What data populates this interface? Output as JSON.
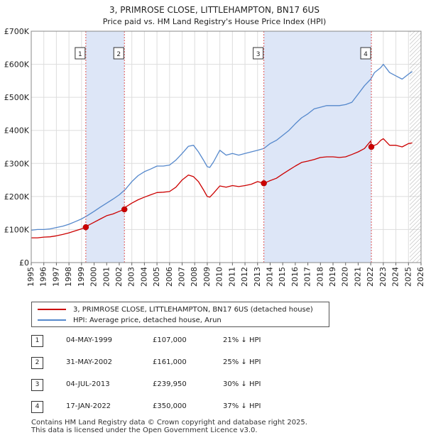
{
  "title_line1": "3, PRIMROSE CLOSE, LITTLEHAMPTON, BN17 6US",
  "title_line2": "Price paid vs. HM Land Registry's House Price Index (HPI)",
  "colors": {
    "property": "#cc0000",
    "hpi": "#5588cc",
    "shade": "#dde6f7",
    "marker_line": "#e05555",
    "grid": "#dddddd",
    "hatch": "#999999"
  },
  "legend": {
    "property_label": "3, PRIMROSE CLOSE, LITTLEHAMPTON, BN17 6US (detached house)",
    "hpi_label": "HPI: Average price, detached house, Arun"
  },
  "sales": [
    {
      "num": "1",
      "date": "04-MAY-1999",
      "price": "£107,000",
      "hpi": "21% ↓ HPI"
    },
    {
      "num": "2",
      "date": "31-MAY-2002",
      "price": "£161,000",
      "hpi": "25% ↓ HPI"
    },
    {
      "num": "3",
      "date": "04-JUL-2013",
      "price": "£239,950",
      "hpi": "30% ↓ HPI"
    },
    {
      "num": "4",
      "date": "17-JAN-2022",
      "price": "£350,000",
      "hpi": "37% ↓ HPI"
    }
  ],
  "footer_line1": "Contains HM Land Registry data © Crown copyright and database right 2025.",
  "footer_line2": "This data is licensed under the Open Government Licence v3.0.",
  "chart_data": {
    "type": "line",
    "title": "3, PRIMROSE CLOSE, LITTLEHAMPTON, BN17 6US",
    "subtitle": "Price paid vs. HM Land Registry's House Price Index (HPI)",
    "xlim": [
      1995,
      2026
    ],
    "ylim": [
      0,
      700000
    ],
    "y_ticks": [
      0,
      100000,
      200000,
      300000,
      400000,
      500000,
      600000,
      700000
    ],
    "y_tick_labels": [
      "£0",
      "£100K",
      "£200K",
      "£300K",
      "£400K",
      "£500K",
      "£600K",
      "£700K"
    ],
    "x_ticks": [
      1995,
      1996,
      1997,
      1998,
      1999,
      2000,
      2001,
      2002,
      2003,
      2004,
      2005,
      2006,
      2007,
      2008,
      2009,
      2010,
      2011,
      2012,
      2013,
      2014,
      2015,
      2016,
      2017,
      2018,
      2019,
      2020,
      2021,
      2022,
      2023,
      2024,
      2025,
      2026
    ],
    "x_tick_labels": [
      "1995",
      "1996",
      "1997",
      "1998",
      "1999",
      "2000",
      "2001",
      "2002",
      "2003",
      "2004",
      "2005",
      "2006",
      "2007",
      "2008",
      "2009",
      "2010",
      "2011",
      "2012",
      "2013",
      "2014",
      "2015",
      "2016",
      "2017",
      "2018",
      "2019",
      "2020",
      "2021",
      "2022",
      "2023",
      "2024",
      "2025",
      "2026"
    ],
    "grid": true,
    "shaded_periods": [
      [
        1999.34,
        2002.41
      ],
      [
        2013.5,
        2022.05
      ]
    ],
    "forecast_start": 2025.1,
    "sale_markers": [
      {
        "label": "1",
        "x": 1999.34,
        "y": 107000
      },
      {
        "label": "2",
        "x": 2002.41,
        "y": 161000
      },
      {
        "label": "3",
        "x": 2013.5,
        "y": 239950
      },
      {
        "label": "4",
        "x": 2022.05,
        "y": 350000
      }
    ],
    "series": [
      {
        "name": "3, PRIMROSE CLOSE, LITTLEHAMPTON, BN17 6US (detached house)",
        "x": [
          1995,
          1995.5,
          1996,
          1996.5,
          1997,
          1997.5,
          1998,
          1998.5,
          1999,
          1999.34,
          1999.5,
          2000,
          2000.5,
          2001,
          2001.5,
          2002,
          2002.41,
          2002.5,
          2003,
          2003.5,
          2004,
          2004.5,
          2005,
          2005.5,
          2006,
          2006.5,
          2007,
          2007.5,
          2007.9,
          2008.3,
          2008.7,
          2009,
          2009.2,
          2009.5,
          2010,
          2010.5,
          2011,
          2011.5,
          2012,
          2012.5,
          2013,
          2013.5,
          2014,
          2014.5,
          2015,
          2015.5,
          2016,
          2016.5,
          2017,
          2017.5,
          2018,
          2018.5,
          2019,
          2019.5,
          2020,
          2020.5,
          2021,
          2021.5,
          2022,
          2022.05,
          2022.3,
          2022.5,
          2022.8,
          2023,
          2023.5,
          2024,
          2024.5,
          2025,
          2025.3
        ],
        "values": [
          75000,
          75000,
          77000,
          78000,
          81000,
          85000,
          90000,
          96000,
          102000,
          107000,
          112000,
          122000,
          132000,
          142000,
          147000,
          155000,
          161000,
          168000,
          180000,
          190000,
          198000,
          205000,
          212000,
          213000,
          215000,
          228000,
          250000,
          265000,
          260000,
          245000,
          220000,
          200000,
          198000,
          210000,
          232000,
          228000,
          233000,
          230000,
          233000,
          237000,
          245000,
          239950,
          248000,
          255000,
          268000,
          280000,
          292000,
          303000,
          307000,
          312000,
          318000,
          320000,
          320000,
          318000,
          320000,
          327000,
          335000,
          345000,
          368000,
          350000,
          355000,
          358000,
          370000,
          375000,
          355000,
          355000,
          350000,
          360000,
          362000
        ]
      },
      {
        "name": "HPI: Average price, detached house, Arun",
        "x": [
          1995,
          1995.5,
          1996,
          1996.5,
          1997,
          1997.5,
          1998,
          1998.5,
          1999,
          1999.5,
          2000,
          2000.5,
          2001,
          2001.5,
          2002,
          2002.5,
          2003,
          2003.5,
          2004,
          2004.5,
          2005,
          2005.5,
          2006,
          2006.5,
          2007,
          2007.5,
          2007.9,
          2008.3,
          2008.7,
          2009,
          2009.2,
          2009.5,
          2010,
          2010.5,
          2011,
          2011.5,
          2012,
          2012.5,
          2013,
          2013.5,
          2014,
          2014.5,
          2015,
          2015.5,
          2016,
          2016.5,
          2017,
          2017.5,
          2018,
          2018.5,
          2019,
          2019.5,
          2020,
          2020.5,
          2021,
          2021.5,
          2022,
          2022.3,
          2022.8,
          2023,
          2023.5,
          2024,
          2024.5,
          2025,
          2025.3
        ],
        "values": [
          98000,
          100000,
          100000,
          102000,
          106000,
          110000,
          116000,
          124000,
          132000,
          143000,
          155000,
          168000,
          180000,
          192000,
          205000,
          222000,
          245000,
          263000,
          275000,
          283000,
          292000,
          292000,
          295000,
          310000,
          330000,
          352000,
          355000,
          335000,
          310000,
          290000,
          288000,
          305000,
          340000,
          325000,
          330000,
          325000,
          330000,
          335000,
          340000,
          345000,
          360000,
          370000,
          385000,
          400000,
          420000,
          438000,
          450000,
          465000,
          470000,
          475000,
          475000,
          475000,
          478000,
          485000,
          510000,
          535000,
          555000,
          575000,
          590000,
          600000,
          575000,
          565000,
          555000,
          570000,
          578000
        ]
      }
    ]
  }
}
